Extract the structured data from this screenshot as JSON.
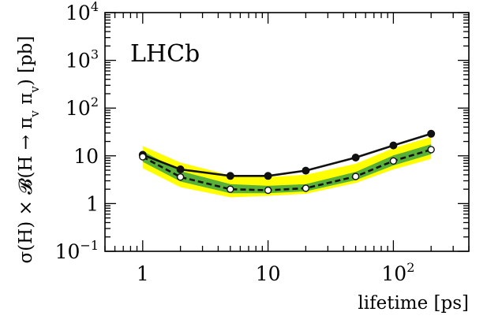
{
  "chart_data": {
    "type": "line",
    "experiment_label": "LHCb",
    "xlabel": "lifetime [ps]",
    "ylabel": "σ(H) × 𝓑(H → π_v π_v) [pb]",
    "x_scale": "log",
    "y_scale": "log",
    "xlim": [
      0.5,
      400
    ],
    "ylim": [
      0.1,
      10000
    ],
    "x_ticks": [
      1,
      10,
      100
    ],
    "x_tick_labels": [
      "1",
      "10",
      "10^2"
    ],
    "y_ticks": [
      0.1,
      1,
      10,
      100,
      1000,
      10000
    ],
    "y_tick_labels": [
      "10^-1",
      "1",
      "10",
      "10^2",
      "10^3",
      "10^4"
    ],
    "x": [
      1,
      2,
      5,
      10,
      20,
      50,
      100,
      200
    ],
    "series": [
      {
        "style": "solid line with filled circles",
        "color": "#111111",
        "values": [
          10.5,
          5.2,
          3.8,
          3.8,
          4.9,
          9.2,
          16.5,
          29
        ]
      },
      {
        "style": "dashed line with open circles",
        "color": "#111111",
        "values": [
          9.5,
          3.6,
          2.0,
          1.9,
          2.1,
          3.7,
          7.8,
          13.5
        ]
      }
    ],
    "bands": [
      {
        "color": "#ffff00",
        "lower": [
          5.5,
          2.2,
          1.35,
          1.45,
          1.6,
          2.7,
          5.2,
          8.6
        ],
        "upper": [
          16,
          7.2,
          3.9,
          3.6,
          4.0,
          6.8,
          14.5,
          25
        ]
      },
      {
        "color": "#58b038",
        "lower": [
          7.5,
          2.9,
          1.65,
          1.65,
          1.8,
          3.1,
          6.3,
          10.8
        ],
        "upper": [
          12.5,
          4.8,
          2.55,
          2.35,
          2.55,
          4.6,
          10.2,
          17.5
        ]
      }
    ]
  }
}
